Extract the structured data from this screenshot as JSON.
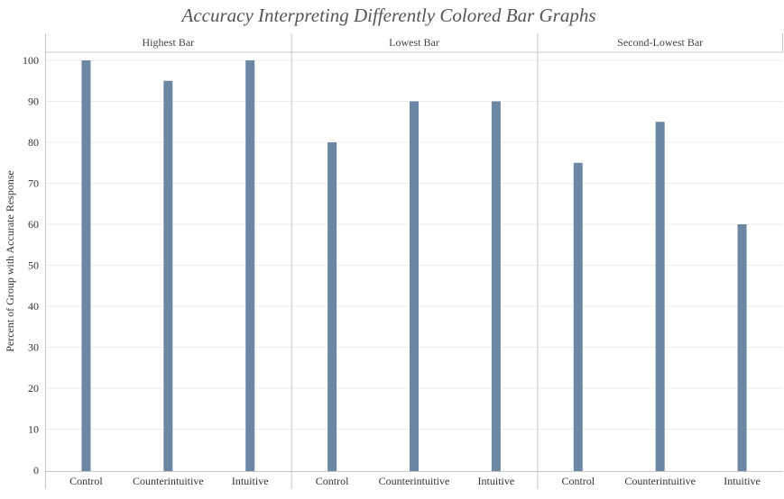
{
  "chart_data": {
    "type": "bar",
    "title": "Accuracy Interpreting Differently Colored Bar Graphs",
    "ylabel": "Percent of Group with Accurate Response",
    "xlabel": "",
    "ylim": [
      0,
      100
    ],
    "yticks": [
      0,
      10,
      20,
      30,
      40,
      50,
      60,
      70,
      80,
      90,
      100
    ],
    "grid": true,
    "bar_color": "#6b87a3",
    "facets": [
      {
        "name": "Highest Bar",
        "categories": [
          "Control",
          "Counterintuitive",
          "Intuitive"
        ],
        "values": [
          100,
          95,
          100
        ]
      },
      {
        "name": "Lowest Bar",
        "categories": [
          "Control",
          "Counterintuitive",
          "Intuitive"
        ],
        "values": [
          80,
          90,
          90
        ]
      },
      {
        "name": "Second-Lowest Bar",
        "categories": [
          "Control",
          "Counterintuitive",
          "Intuitive"
        ],
        "values": [
          75,
          85,
          60
        ]
      }
    ]
  }
}
